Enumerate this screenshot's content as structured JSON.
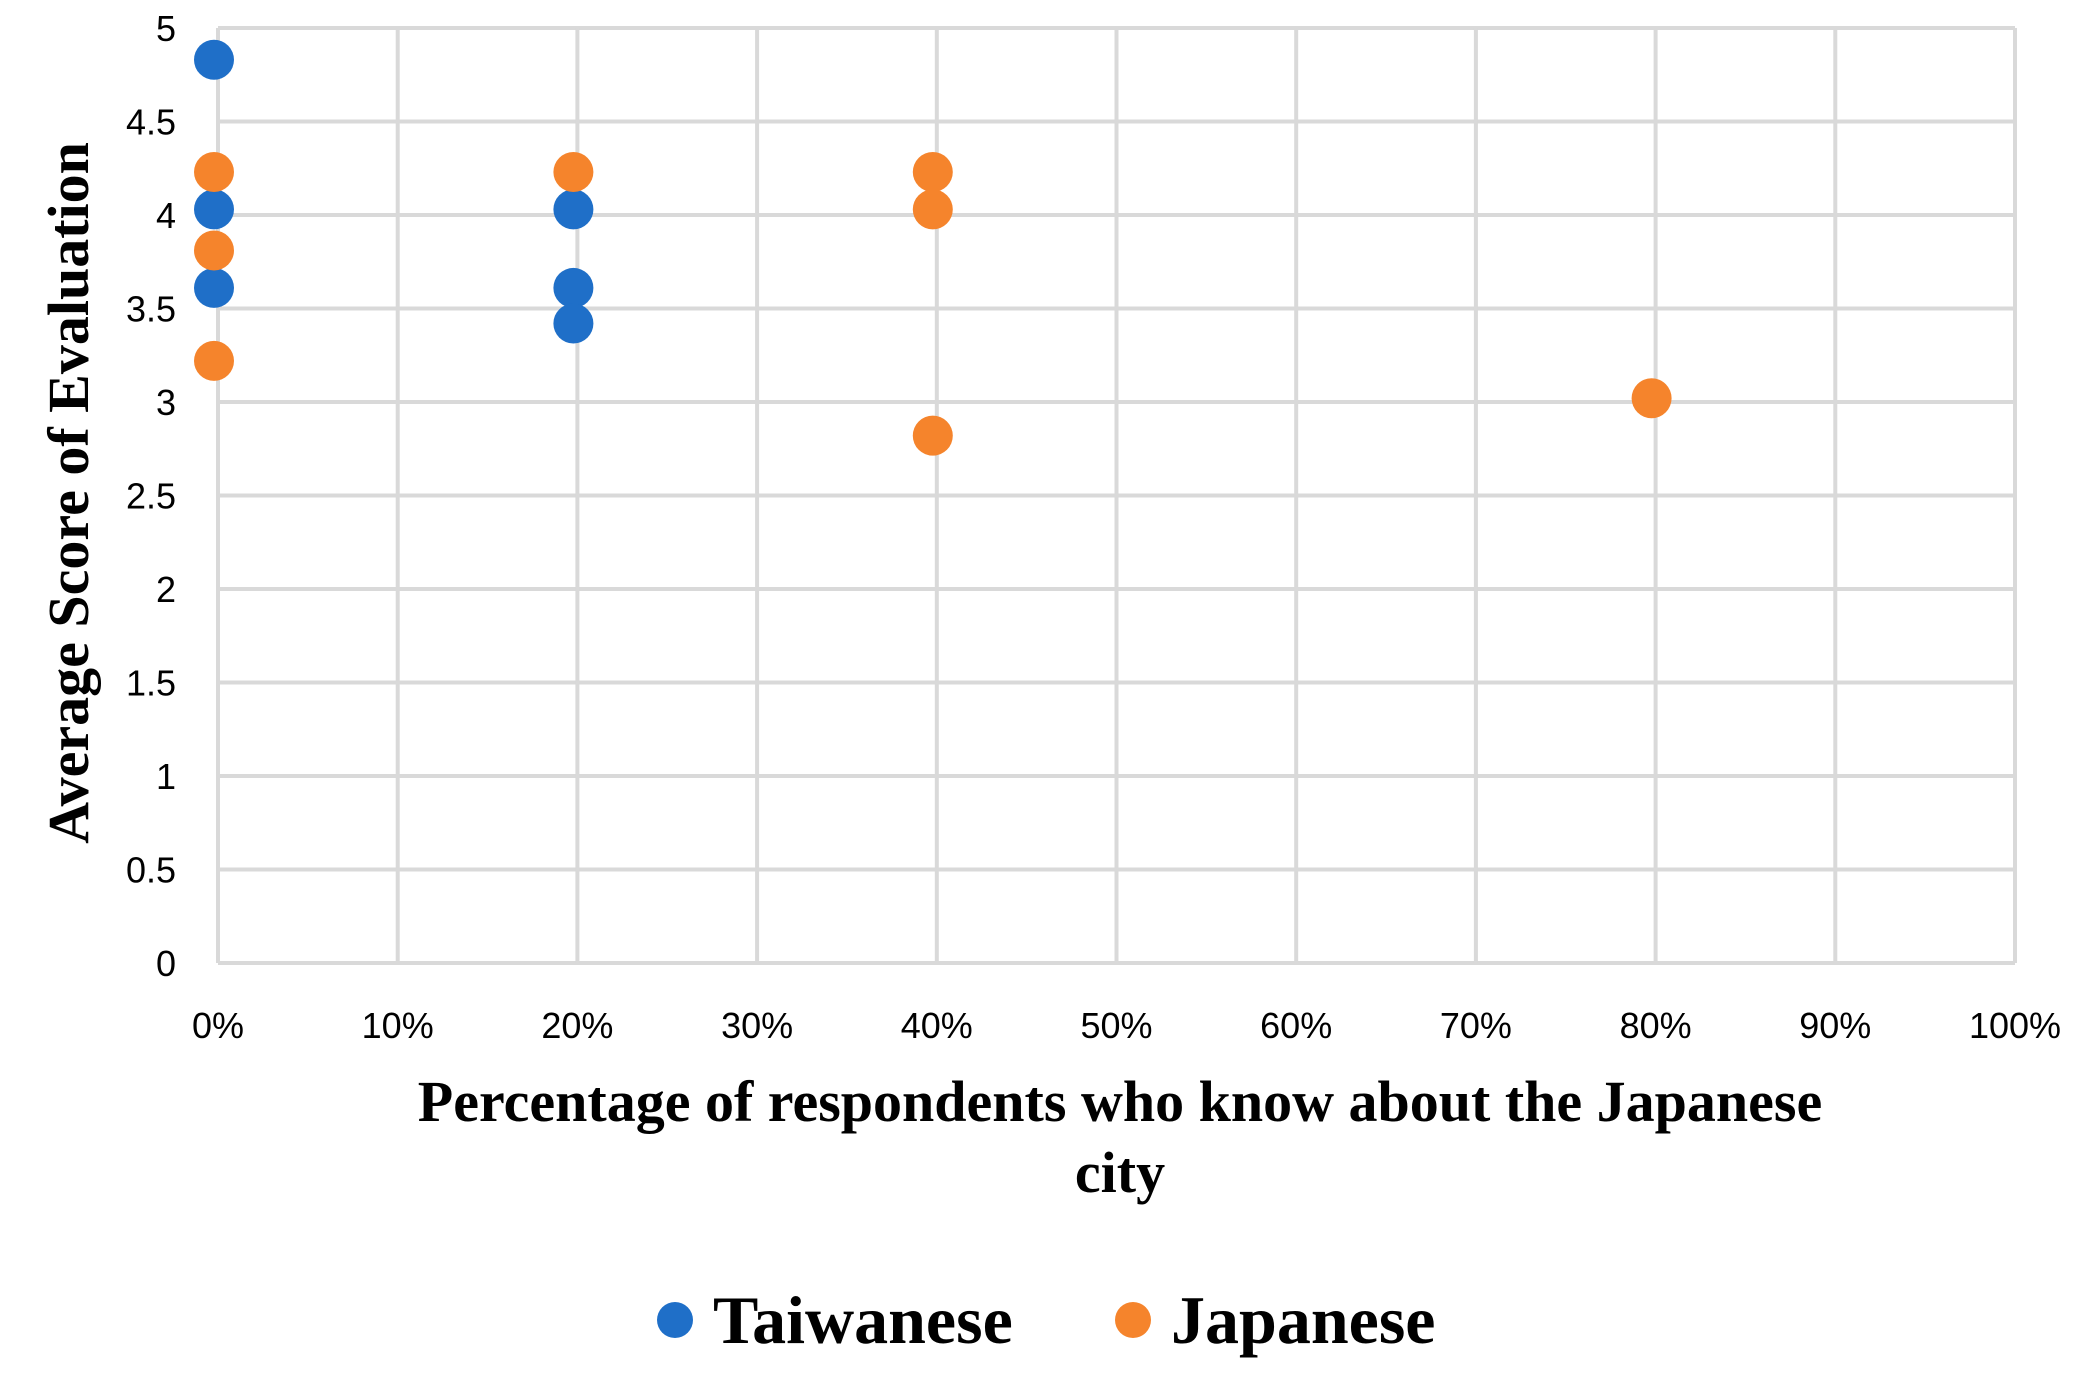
{
  "chart_data": {
    "type": "scatter",
    "xlabel_lines": [
      "Percentage of respondents who know about the Japanese",
      "city"
    ],
    "ylabel": "Average Score of Evaluation",
    "xlim": [
      0,
      1
    ],
    "ylim": [
      0,
      5
    ],
    "x_ticks": [
      0,
      0.1,
      0.2,
      0.3,
      0.4,
      0.5,
      0.6,
      0.7,
      0.8,
      0.9,
      1.0
    ],
    "x_tick_labels": [
      "0%",
      "10%",
      "20%",
      "30%",
      "40%",
      "50%",
      "60%",
      "70%",
      "80%",
      "90%",
      "100%"
    ],
    "y_ticks": [
      0,
      0.5,
      1,
      1.5,
      2,
      2.5,
      3,
      3.5,
      4,
      4.5,
      5
    ],
    "y_tick_labels": [
      "0",
      "0.5",
      "1",
      "1.5",
      "2",
      "2.5",
      "3",
      "3.5",
      "4",
      "4.5",
      "5"
    ],
    "grid": true,
    "legend_position": "bottom",
    "series": [
      {
        "name": "Taiwanese",
        "color": "#1f6fc8",
        "points": [
          {
            "x": 0,
            "y": 4.83
          },
          {
            "x": 0,
            "y": 4.03
          },
          {
            "x": 0,
            "y": 3.61
          },
          {
            "x": 0.2,
            "y": 4.03
          },
          {
            "x": 0.2,
            "y": 3.61
          },
          {
            "x": 0.2,
            "y": 3.42
          }
        ]
      },
      {
        "name": "Japanese",
        "color": "#f5842c",
        "points": [
          {
            "x": 0,
            "y": 4.23
          },
          {
            "x": 0,
            "y": 3.81
          },
          {
            "x": 0,
            "y": 3.22
          },
          {
            "x": 0.2,
            "y": 4.23
          },
          {
            "x": 0.4,
            "y": 4.23
          },
          {
            "x": 0.4,
            "y": 4.03
          },
          {
            "x": 0.4,
            "y": 2.82
          },
          {
            "x": 0.8,
            "y": 3.02
          }
        ]
      }
    ]
  }
}
